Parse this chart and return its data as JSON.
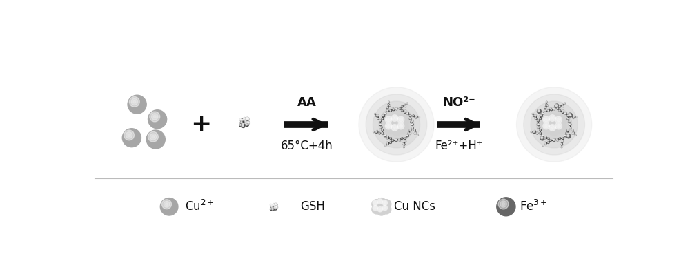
{
  "background_color": "#ffffff",
  "arrow1_label_top": "AA",
  "arrow1_label_bottom": "65°C+4h",
  "arrow2_label_top": "NO²⁻",
  "arrow2_label_bottom": "Fe²⁺+H⁺",
  "text_color": "#111111",
  "font_size_arrow": 13,
  "font_size_legend": 12,
  "cu2_color": "#aaaaaa",
  "cu_nc_core_color": "#d8d8d8",
  "fe3_color": "#666666",
  "gsh_bond_color": "#444444",
  "gsh_c_atom": "#444444",
  "gsh_s_atom": "#333333",
  "gsh_h_atom": "#aaaaaa",
  "arrow_color": "#111111",
  "glow_color": "#cccccc"
}
